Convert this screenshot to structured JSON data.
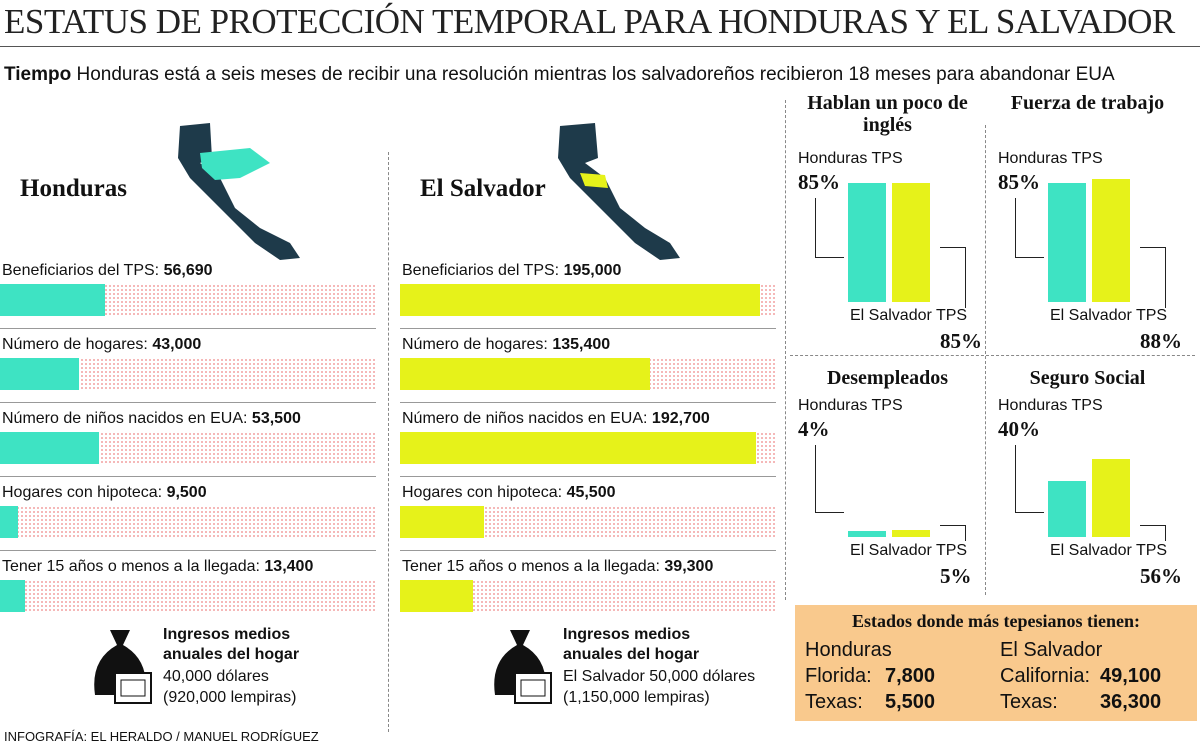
{
  "header": {
    "title": "ESTATUS DE PROTECCIÓN TEMPORAL PARA HONDURAS Y EL SALVADOR",
    "lead_bold": "Tiempo",
    "lead": "Honduras está a seis meses de recibir una resolución mientras los salvadoreños recibieron 18 meses para abandonar EUA"
  },
  "countries": [
    {
      "name": "Honduras",
      "color": "#3ee3c3",
      "rows": [
        {
          "label": "Beneficiarios del TPS:",
          "value": 56690,
          "value_label": "56,690"
        },
        {
          "label": "Número de hogares:",
          "value": 43000,
          "value_label": "43,000"
        },
        {
          "label": "Número de niños nacidos en EUA:",
          "value": 53500,
          "value_label": "53,500"
        },
        {
          "label": "Hogares con hipoteca:",
          "value": 9500,
          "value_label": "9,500"
        },
        {
          "label": "Tener 15 años o menos a la llegada:",
          "value": 13400,
          "value_label": "13,400"
        }
      ],
      "income": {
        "title": "Ingresos medios anuales del hogar",
        "line1": "40,000 dólares",
        "line2": "(920,000 lempiras)"
      }
    },
    {
      "name": "El Salvador",
      "color": "#e6f21a",
      "rows": [
        {
          "label": "Beneficiarios del TPS:",
          "value": 195000,
          "value_label": "195,000"
        },
        {
          "label": "Número de hogares:",
          "value": 135400,
          "value_label": "135,400"
        },
        {
          "label": "Número de niños nacidos en EUA:",
          "value": 192700,
          "value_label": "192,700"
        },
        {
          "label": "Hogares con hipoteca:",
          "value": 45500,
          "value_label": "45,500"
        },
        {
          "label": "Tener 15 años o menos a la llegada:",
          "value": 39300,
          "value_label": "39,300"
        }
      ],
      "income": {
        "title": "Ingresos medios anuales del hogar",
        "line1": "El Salvador 50,000 dólares",
        "line2": "(1,150,000 lempiras)"
      }
    }
  ],
  "comparisons": [
    {
      "title": "Hablan un poco de inglés",
      "series": [
        {
          "name": "Honduras TPS",
          "color": "#3ee3c3",
          "value": 85,
          "value_label": "85%"
        },
        {
          "name": "El Salvador TPS",
          "color": "#e6f21a",
          "value": 85,
          "value_label": "85%"
        }
      ]
    },
    {
      "title": "Fuerza de trabajo",
      "series": [
        {
          "name": "Honduras TPS",
          "color": "#3ee3c3",
          "value": 85,
          "value_label": "85%"
        },
        {
          "name": "El Salvador TPS",
          "color": "#e6f21a",
          "value": 88,
          "value_label": "88%"
        }
      ]
    },
    {
      "title": "Desempleados",
      "series": [
        {
          "name": "Honduras TPS",
          "color": "#3ee3c3",
          "value": 4,
          "value_label": "4%"
        },
        {
          "name": "El Salvador TPS",
          "color": "#e6f21a",
          "value": 5,
          "value_label": "5%"
        }
      ]
    },
    {
      "title": "Seguro Social",
      "series": [
        {
          "name": "Honduras TPS",
          "color": "#3ee3c3",
          "value": 40,
          "value_label": "40%"
        },
        {
          "name": "El Salvador TPS",
          "color": "#e6f21a",
          "value": 56,
          "value_label": "56%"
        }
      ]
    }
  ],
  "states": {
    "title": "Estados donde más tepesianos tienen:",
    "groups": [
      {
        "name": "Honduras",
        "rows": [
          {
            "state": "Florida:",
            "value": "7,800"
          },
          {
            "state": "Texas:",
            "value": "5,500"
          }
        ]
      },
      {
        "name": "El Salvador",
        "rows": [
          {
            "state": "California:",
            "value": "49,100"
          },
          {
            "state": "Texas:",
            "value": "36,300"
          }
        ]
      }
    ]
  },
  "credit": "INFOGRAFÍA: EL HERALDO / MANUEL RODRÍGUEZ"
}
